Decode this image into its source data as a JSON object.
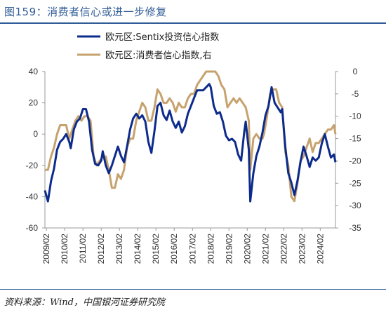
{
  "figure": {
    "title": "图159：消费者信心或进一步修复",
    "source": "资料来源：Wind，中国银河证券研究院"
  },
  "chart_data": {
    "type": "line",
    "x_tick_labels": [
      "2009/02",
      "2010/02",
      "2011/02",
      "2012/02",
      "2013/02",
      "2014/02",
      "2015/02",
      "2016/02",
      "2017/02",
      "2018/02",
      "2019/02",
      "2020/02",
      "2021/02",
      "2022/02",
      "2023/02",
      "2024/02"
    ],
    "x_range": [
      "2009/01",
      "2024/12"
    ],
    "y_left": {
      "ylim": [
        -60,
        40
      ],
      "ticks": [
        "40",
        "20",
        "0",
        "-20",
        "-40",
        "-60"
      ]
    },
    "y_right": {
      "ylim": [
        -35,
        0
      ],
      "ticks": [
        "0",
        "-5",
        "-10",
        "-15",
        "-20",
        "-25",
        "-30",
        "-35"
      ]
    },
    "legend_position": "top-center",
    "grid": false,
    "series": [
      {
        "name": "欧元区:Sentix投资信心指数",
        "axis": "left",
        "color": "#0d2b8c",
        "points": [
          [
            "2009/01",
            -36
          ],
          [
            "2009/03",
            -43
          ],
          [
            "2009/05",
            -30
          ],
          [
            "2009/07",
            -22
          ],
          [
            "2009/09",
            -10
          ],
          [
            "2009/11",
            -5
          ],
          [
            "2010/01",
            -3
          ],
          [
            "2010/03",
            0
          ],
          [
            "2010/05",
            -5
          ],
          [
            "2010/06",
            -9
          ],
          [
            "2010/08",
            3
          ],
          [
            "2010/10",
            8
          ],
          [
            "2010/12",
            10
          ],
          [
            "2011/02",
            16
          ],
          [
            "2011/04",
            16
          ],
          [
            "2011/06",
            8
          ],
          [
            "2011/08",
            -10
          ],
          [
            "2011/10",
            -19
          ],
          [
            "2011/12",
            -20
          ],
          [
            "2012/02",
            -17
          ],
          [
            "2012/03",
            -11
          ],
          [
            "2012/05",
            -20
          ],
          [
            "2012/07",
            -25
          ],
          [
            "2012/09",
            -20
          ],
          [
            "2012/11",
            -14
          ],
          [
            "2013/01",
            -8
          ],
          [
            "2013/03",
            -14
          ],
          [
            "2013/05",
            -18
          ],
          [
            "2013/07",
            -8
          ],
          [
            "2013/09",
            3
          ],
          [
            "2013/11",
            10
          ],
          [
            "2014/01",
            13
          ],
          [
            "2014/03",
            10
          ],
          [
            "2014/05",
            12
          ],
          [
            "2014/07",
            8
          ],
          [
            "2014/09",
            -5
          ],
          [
            "2014/11",
            -12
          ],
          [
            "2015/01",
            2
          ],
          [
            "2015/03",
            18
          ],
          [
            "2015/05",
            20
          ],
          [
            "2015/07",
            12
          ],
          [
            "2015/09",
            9
          ],
          [
            "2015/11",
            15
          ],
          [
            "2016/01",
            8
          ],
          [
            "2016/03",
            4
          ],
          [
            "2016/05",
            8
          ],
          [
            "2016/07",
            1
          ],
          [
            "2016/09",
            5
          ],
          [
            "2016/11",
            13
          ],
          [
            "2017/01",
            18
          ],
          [
            "2017/03",
            23
          ],
          [
            "2017/05",
            28
          ],
          [
            "2017/07",
            28
          ],
          [
            "2017/09",
            28
          ],
          [
            "2017/11",
            30
          ],
          [
            "2018/01",
            32
          ],
          [
            "2018/02",
            30
          ],
          [
            "2018/04",
            18
          ],
          [
            "2018/06",
            13
          ],
          [
            "2018/08",
            14
          ],
          [
            "2018/10",
            8
          ],
          [
            "2018/12",
            -1
          ],
          [
            "2019/02",
            -4
          ],
          [
            "2019/04",
            -3
          ],
          [
            "2019/06",
            -5
          ],
          [
            "2019/08",
            -13
          ],
          [
            "2019/10",
            -17
          ],
          [
            "2019/12",
            1
          ],
          [
            "2020/01",
            8
          ],
          [
            "2020/03",
            -10
          ],
          [
            "2020/04",
            -43
          ],
          [
            "2020/06",
            -25
          ],
          [
            "2020/08",
            -14
          ],
          [
            "2020/10",
            -8
          ],
          [
            "2020/12",
            1
          ],
          [
            "2021/02",
            12
          ],
          [
            "2021/04",
            18
          ],
          [
            "2021/06",
            30
          ],
          [
            "2021/08",
            20
          ],
          [
            "2021/10",
            17
          ],
          [
            "2021/12",
            14
          ],
          [
            "2022/01",
            16
          ],
          [
            "2022/03",
            -8
          ],
          [
            "2022/05",
            -25
          ],
          [
            "2022/07",
            -31
          ],
          [
            "2022/09",
            -39
          ],
          [
            "2022/11",
            -30
          ],
          [
            "2023/01",
            -18
          ],
          [
            "2023/03",
            -8
          ],
          [
            "2023/05",
            -14
          ],
          [
            "2023/07",
            -21
          ],
          [
            "2023/09",
            -15
          ],
          [
            "2023/11",
            -17
          ],
          [
            "2024/01",
            -15
          ],
          [
            "2024/03",
            -6
          ],
          [
            "2024/05",
            0
          ],
          [
            "2024/07",
            -8
          ],
          [
            "2024/09",
            -15
          ],
          [
            "2024/11",
            -13
          ],
          [
            "2024/12",
            -18
          ]
        ]
      },
      {
        "name": "欧元区:消费者信心指数,右",
        "axis": "right",
        "color": "#c6a26e",
        "points": [
          [
            "2009/01",
            -22
          ],
          [
            "2009/03",
            -22
          ],
          [
            "2009/05",
            -19
          ],
          [
            "2009/07",
            -17
          ],
          [
            "2009/09",
            -14
          ],
          [
            "2009/11",
            -12
          ],
          [
            "2010/01",
            -12
          ],
          [
            "2010/03",
            -12
          ],
          [
            "2010/05",
            -15
          ],
          [
            "2010/07",
            -13
          ],
          [
            "2010/09",
            -11
          ],
          [
            "2010/11",
            -10
          ],
          [
            "2011/01",
            -11
          ],
          [
            "2011/03",
            -10
          ],
          [
            "2011/05",
            -10
          ],
          [
            "2011/07",
            -11
          ],
          [
            "2011/09",
            -19
          ],
          [
            "2011/11",
            -21
          ],
          [
            "2012/01",
            -20
          ],
          [
            "2012/03",
            -19
          ],
          [
            "2012/05",
            -19
          ],
          [
            "2012/07",
            -22
          ],
          [
            "2012/09",
            -26
          ],
          [
            "2012/11",
            -26
          ],
          [
            "2013/01",
            -23
          ],
          [
            "2013/03",
            -24
          ],
          [
            "2013/05",
            -22
          ],
          [
            "2013/07",
            -17
          ],
          [
            "2013/09",
            -15
          ],
          [
            "2013/11",
            -15
          ],
          [
            "2014/01",
            -11
          ],
          [
            "2014/03",
            -9
          ],
          [
            "2014/05",
            -7
          ],
          [
            "2014/07",
            -8
          ],
          [
            "2014/09",
            -11
          ],
          [
            "2014/11",
            -11
          ],
          [
            "2015/01",
            -8
          ],
          [
            "2015/03",
            -4
          ],
          [
            "2015/05",
            -5
          ],
          [
            "2015/07",
            -7
          ],
          [
            "2015/09",
            -7
          ],
          [
            "2015/11",
            -6
          ],
          [
            "2016/01",
            -7
          ],
          [
            "2016/03",
            -9
          ],
          [
            "2016/05",
            -7
          ],
          [
            "2016/07",
            -8
          ],
          [
            "2016/09",
            -8
          ],
          [
            "2016/11",
            -6
          ],
          [
            "2017/01",
            -5
          ],
          [
            "2017/03",
            -5
          ],
          [
            "2017/05",
            -3
          ],
          [
            "2017/07",
            -2
          ],
          [
            "2017/09",
            -1
          ],
          [
            "2017/11",
            0
          ],
          [
            "2018/01",
            0
          ],
          [
            "2018/03",
            0
          ],
          [
            "2018/05",
            0
          ],
          [
            "2018/07",
            -1
          ],
          [
            "2018/09",
            -3
          ],
          [
            "2018/11",
            -4
          ],
          [
            "2019/01",
            -8
          ],
          [
            "2019/03",
            -7
          ],
          [
            "2019/05",
            -6
          ],
          [
            "2019/07",
            -7
          ],
          [
            "2019/09",
            -6
          ],
          [
            "2019/11",
            -7
          ],
          [
            "2020/01",
            -8
          ],
          [
            "2020/03",
            -11
          ],
          [
            "2020/04",
            -22
          ],
          [
            "2020/06",
            -15
          ],
          [
            "2020/08",
            -14
          ],
          [
            "2020/10",
            -15
          ],
          [
            "2020/12",
            -15
          ],
          [
            "2021/01",
            -14
          ],
          [
            "2021/03",
            -10
          ],
          [
            "2021/05",
            -5
          ],
          [
            "2021/07",
            -4
          ],
          [
            "2021/09",
            -4
          ],
          [
            "2021/11",
            -7
          ],
          [
            "2022/01",
            -8
          ],
          [
            "2022/03",
            -18
          ],
          [
            "2022/05",
            -21
          ],
          [
            "2022/07",
            -28
          ],
          [
            "2022/09",
            -29
          ],
          [
            "2022/11",
            -25
          ],
          [
            "2023/01",
            -20
          ],
          [
            "2023/03",
            -19
          ],
          [
            "2023/05",
            -17
          ],
          [
            "2023/07",
            -15
          ],
          [
            "2023/09",
            -18
          ],
          [
            "2023/11",
            -16
          ],
          [
            "2024/01",
            -16
          ],
          [
            "2024/03",
            -15
          ],
          [
            "2024/05",
            -14
          ],
          [
            "2024/07",
            -13
          ],
          [
            "2024/09",
            -13
          ],
          [
            "2024/11",
            -12
          ],
          [
            "2024/12",
            -14
          ]
        ]
      }
    ]
  }
}
